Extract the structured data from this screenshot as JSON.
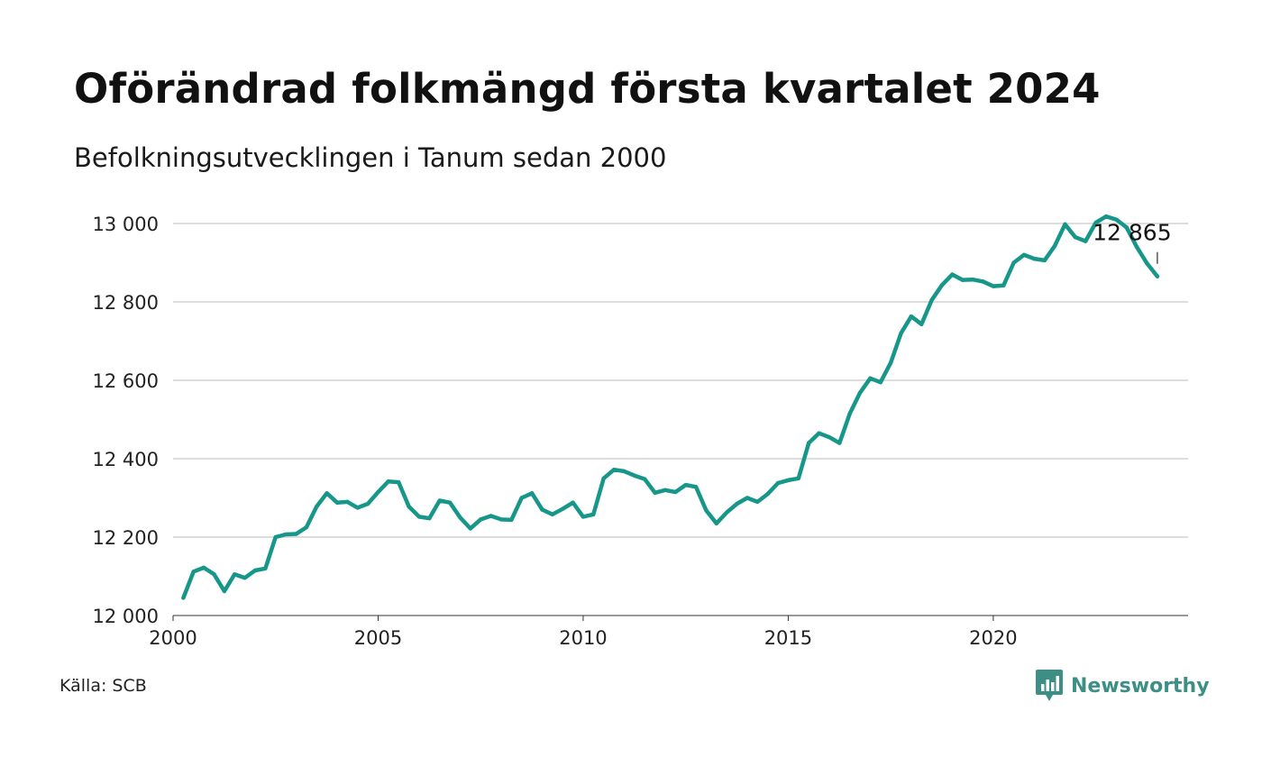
{
  "title": "Oförändrad folkmängd första kvartalet 2024",
  "subtitle": "Befolkningsutvecklingen i Tanum sedan 2000",
  "source": "Källa: SCB",
  "brand": {
    "name": "Newsworthy",
    "icon": "newsworthy-chart-logo-icon"
  },
  "colors": {
    "line": "#17968a",
    "grid": "#dddddd",
    "axis": "#333333",
    "brand": "#3d8f86"
  },
  "chart_data": {
    "type": "line",
    "title": "Oförändrad folkmängd första kvartalet 2024",
    "subtitle": "Befolkningsutvecklingen i Tanum sedan 2000",
    "xlabel": "",
    "ylabel": "",
    "xlim": [
      2000,
      2024.75
    ],
    "ylim": [
      12000,
      13000
    ],
    "grid": "horizontal",
    "legend": "none",
    "x_ticks": [
      2000,
      2005,
      2010,
      2015,
      2020
    ],
    "y_ticks": [
      12000,
      12200,
      12400,
      12600,
      12800,
      13000
    ],
    "y_tick_labels": [
      "12 000",
      "12 200",
      "12 400",
      "12 600",
      "12 800",
      "13 000"
    ],
    "annotation": {
      "text": "12 865",
      "x": 2024.0,
      "y": 12865
    },
    "series": [
      {
        "x": [
          2000.25,
          2000.5,
          2000.75,
          2001.0,
          2001.25,
          2001.5,
          2001.75,
          2002.0,
          2002.25,
          2002.5,
          2002.75,
          2003.0,
          2003.25,
          2003.5,
          2003.75,
          2004.0,
          2004.25,
          2004.5,
          2004.75,
          2005.0,
          2005.25,
          2005.5,
          2005.75,
          2006.0,
          2006.25,
          2006.5,
          2006.75,
          2007.0,
          2007.25,
          2007.5,
          2007.75,
          2008.0,
          2008.25,
          2008.5,
          2008.75,
          2009.0,
          2009.25,
          2009.5,
          2009.75,
          2010.0,
          2010.25,
          2010.5,
          2010.75,
          2011.0,
          2011.25,
          2011.5,
          2011.75,
          2012.0,
          2012.25,
          2012.5,
          2012.75,
          2013.0,
          2013.25,
          2013.5,
          2013.75,
          2014.0,
          2014.25,
          2014.5,
          2014.75,
          2015.0,
          2015.25,
          2015.5,
          2015.75,
          2016.0,
          2016.25,
          2016.5,
          2016.75,
          2017.0,
          2017.25,
          2017.5,
          2017.75,
          2018.0,
          2018.25,
          2018.5,
          2018.75,
          2019.0,
          2019.25,
          2019.5,
          2019.75,
          2020.0,
          2020.25,
          2020.5,
          2020.75,
          2021.0,
          2021.25,
          2021.5,
          2021.75,
          2022.0,
          2022.25,
          2022.5,
          2022.75,
          2023.0,
          2023.25,
          2023.5,
          2023.75,
          2024.0
        ],
        "values": [
          12045,
          12112,
          12122,
          12105,
          12062,
          12105,
          12096,
          12115,
          12120,
          12200,
          12207,
          12208,
          12225,
          12278,
          12312,
          12288,
          12290,
          12275,
          12285,
          12315,
          12342,
          12340,
          12278,
          12252,
          12248,
          12293,
          12288,
          12250,
          12222,
          12245,
          12254,
          12245,
          12244,
          12300,
          12312,
          12270,
          12258,
          12272,
          12288,
          12252,
          12258,
          12350,
          12372,
          12368,
          12357,
          12348,
          12313,
          12320,
          12315,
          12333,
          12328,
          12268,
          12235,
          12263,
          12285,
          12300,
          12290,
          12310,
          12338,
          12345,
          12350,
          12440,
          12465,
          12455,
          12440,
          12515,
          12568,
          12605,
          12595,
          12645,
          12720,
          12763,
          12743,
          12805,
          12843,
          12870,
          12856,
          12857,
          12852,
          12840,
          12842,
          12900,
          12920,
          12910,
          12906,
          12943,
          12998,
          12965,
          12955,
          13002,
          13018,
          13010,
          12990,
          12940,
          12898,
          12865
        ]
      }
    ]
  }
}
